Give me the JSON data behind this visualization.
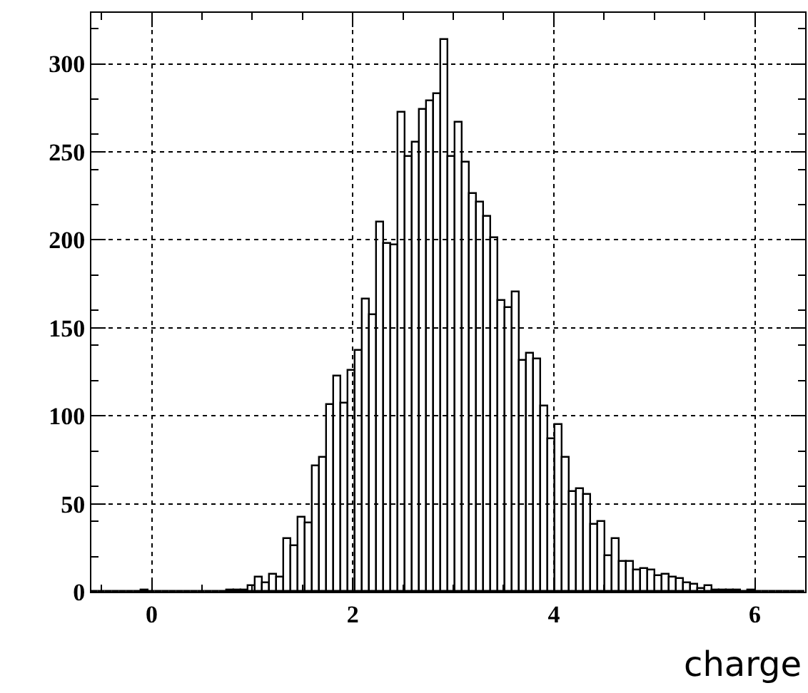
{
  "chart_data": {
    "type": "histogram",
    "xlabel": "charge",
    "bins": [
      -0.6,
      -0.529,
      -0.458,
      -0.387,
      -0.316,
      -0.245,
      -0.174,
      -0.103,
      -0.032,
      0.039,
      0.11,
      0.181,
      0.252,
      0.323,
      0.394,
      0.465,
      0.536,
      0.607,
      0.678,
      0.749,
      0.82,
      0.891,
      0.962,
      1.033,
      1.104,
      1.175,
      1.246,
      1.317,
      1.388,
      1.459,
      1.53,
      1.601,
      1.672,
      1.743,
      1.814,
      1.885,
      1.956,
      2.027,
      2.098,
      2.169,
      2.24,
      2.311,
      2.382,
      2.453,
      2.524,
      2.595,
      2.666,
      2.737,
      2.808,
      2.879,
      2.95,
      3.021,
      3.092,
      3.163,
      3.234,
      3.305,
      3.376,
      3.447,
      3.518,
      3.589,
      3.66,
      3.731,
      3.802,
      3.873,
      3.944,
      4.015,
      4.086,
      4.157,
      4.228,
      4.299,
      4.37,
      4.441,
      4.512,
      4.583,
      4.654,
      4.725,
      4.796,
      4.867,
      4.938,
      5.009,
      5.08,
      5.151,
      5.222,
      5.293,
      5.364,
      5.435,
      5.506,
      5.577,
      5.648,
      5.719,
      5.79,
      5.861,
      5.932,
      6.003,
      6.074,
      6.145,
      6.216,
      6.287,
      6.358,
      6.429,
      6.5
    ],
    "values": [
      0,
      0,
      0,
      0,
      0,
      0,
      0,
      1,
      0,
      0,
      0,
      0,
      0,
      0,
      0,
      0,
      0,
      0,
      0,
      1,
      1,
      1,
      3,
      8,
      5,
      10,
      8,
      30,
      26,
      42,
      39,
      71,
      76,
      106,
      122,
      107,
      126,
      137,
      166,
      157,
      210,
      198,
      197,
      272,
      247,
      255,
      274,
      279,
      283,
      314,
      247,
      267,
      244,
      226,
      221,
      213,
      201,
      165,
      161,
      170,
      131,
      135,
      132,
      105,
      87,
      95,
      76,
      57,
      58,
      55,
      38,
      40,
      20,
      30,
      17,
      17,
      12,
      13,
      12,
      9,
      10,
      8,
      7,
      5,
      4,
      2,
      3,
      1,
      1,
      1,
      1,
      0,
      1,
      0,
      0,
      0,
      0,
      0,
      0,
      0
    ],
    "color": "#000000",
    "xlim": [
      -0.6,
      6.5
    ],
    "ylim": [
      0,
      329
    ],
    "xticks": [
      0,
      2,
      4,
      6
    ],
    "yticks": [
      0,
      50,
      100,
      150,
      200,
      250,
      300
    ],
    "grid": true
  }
}
